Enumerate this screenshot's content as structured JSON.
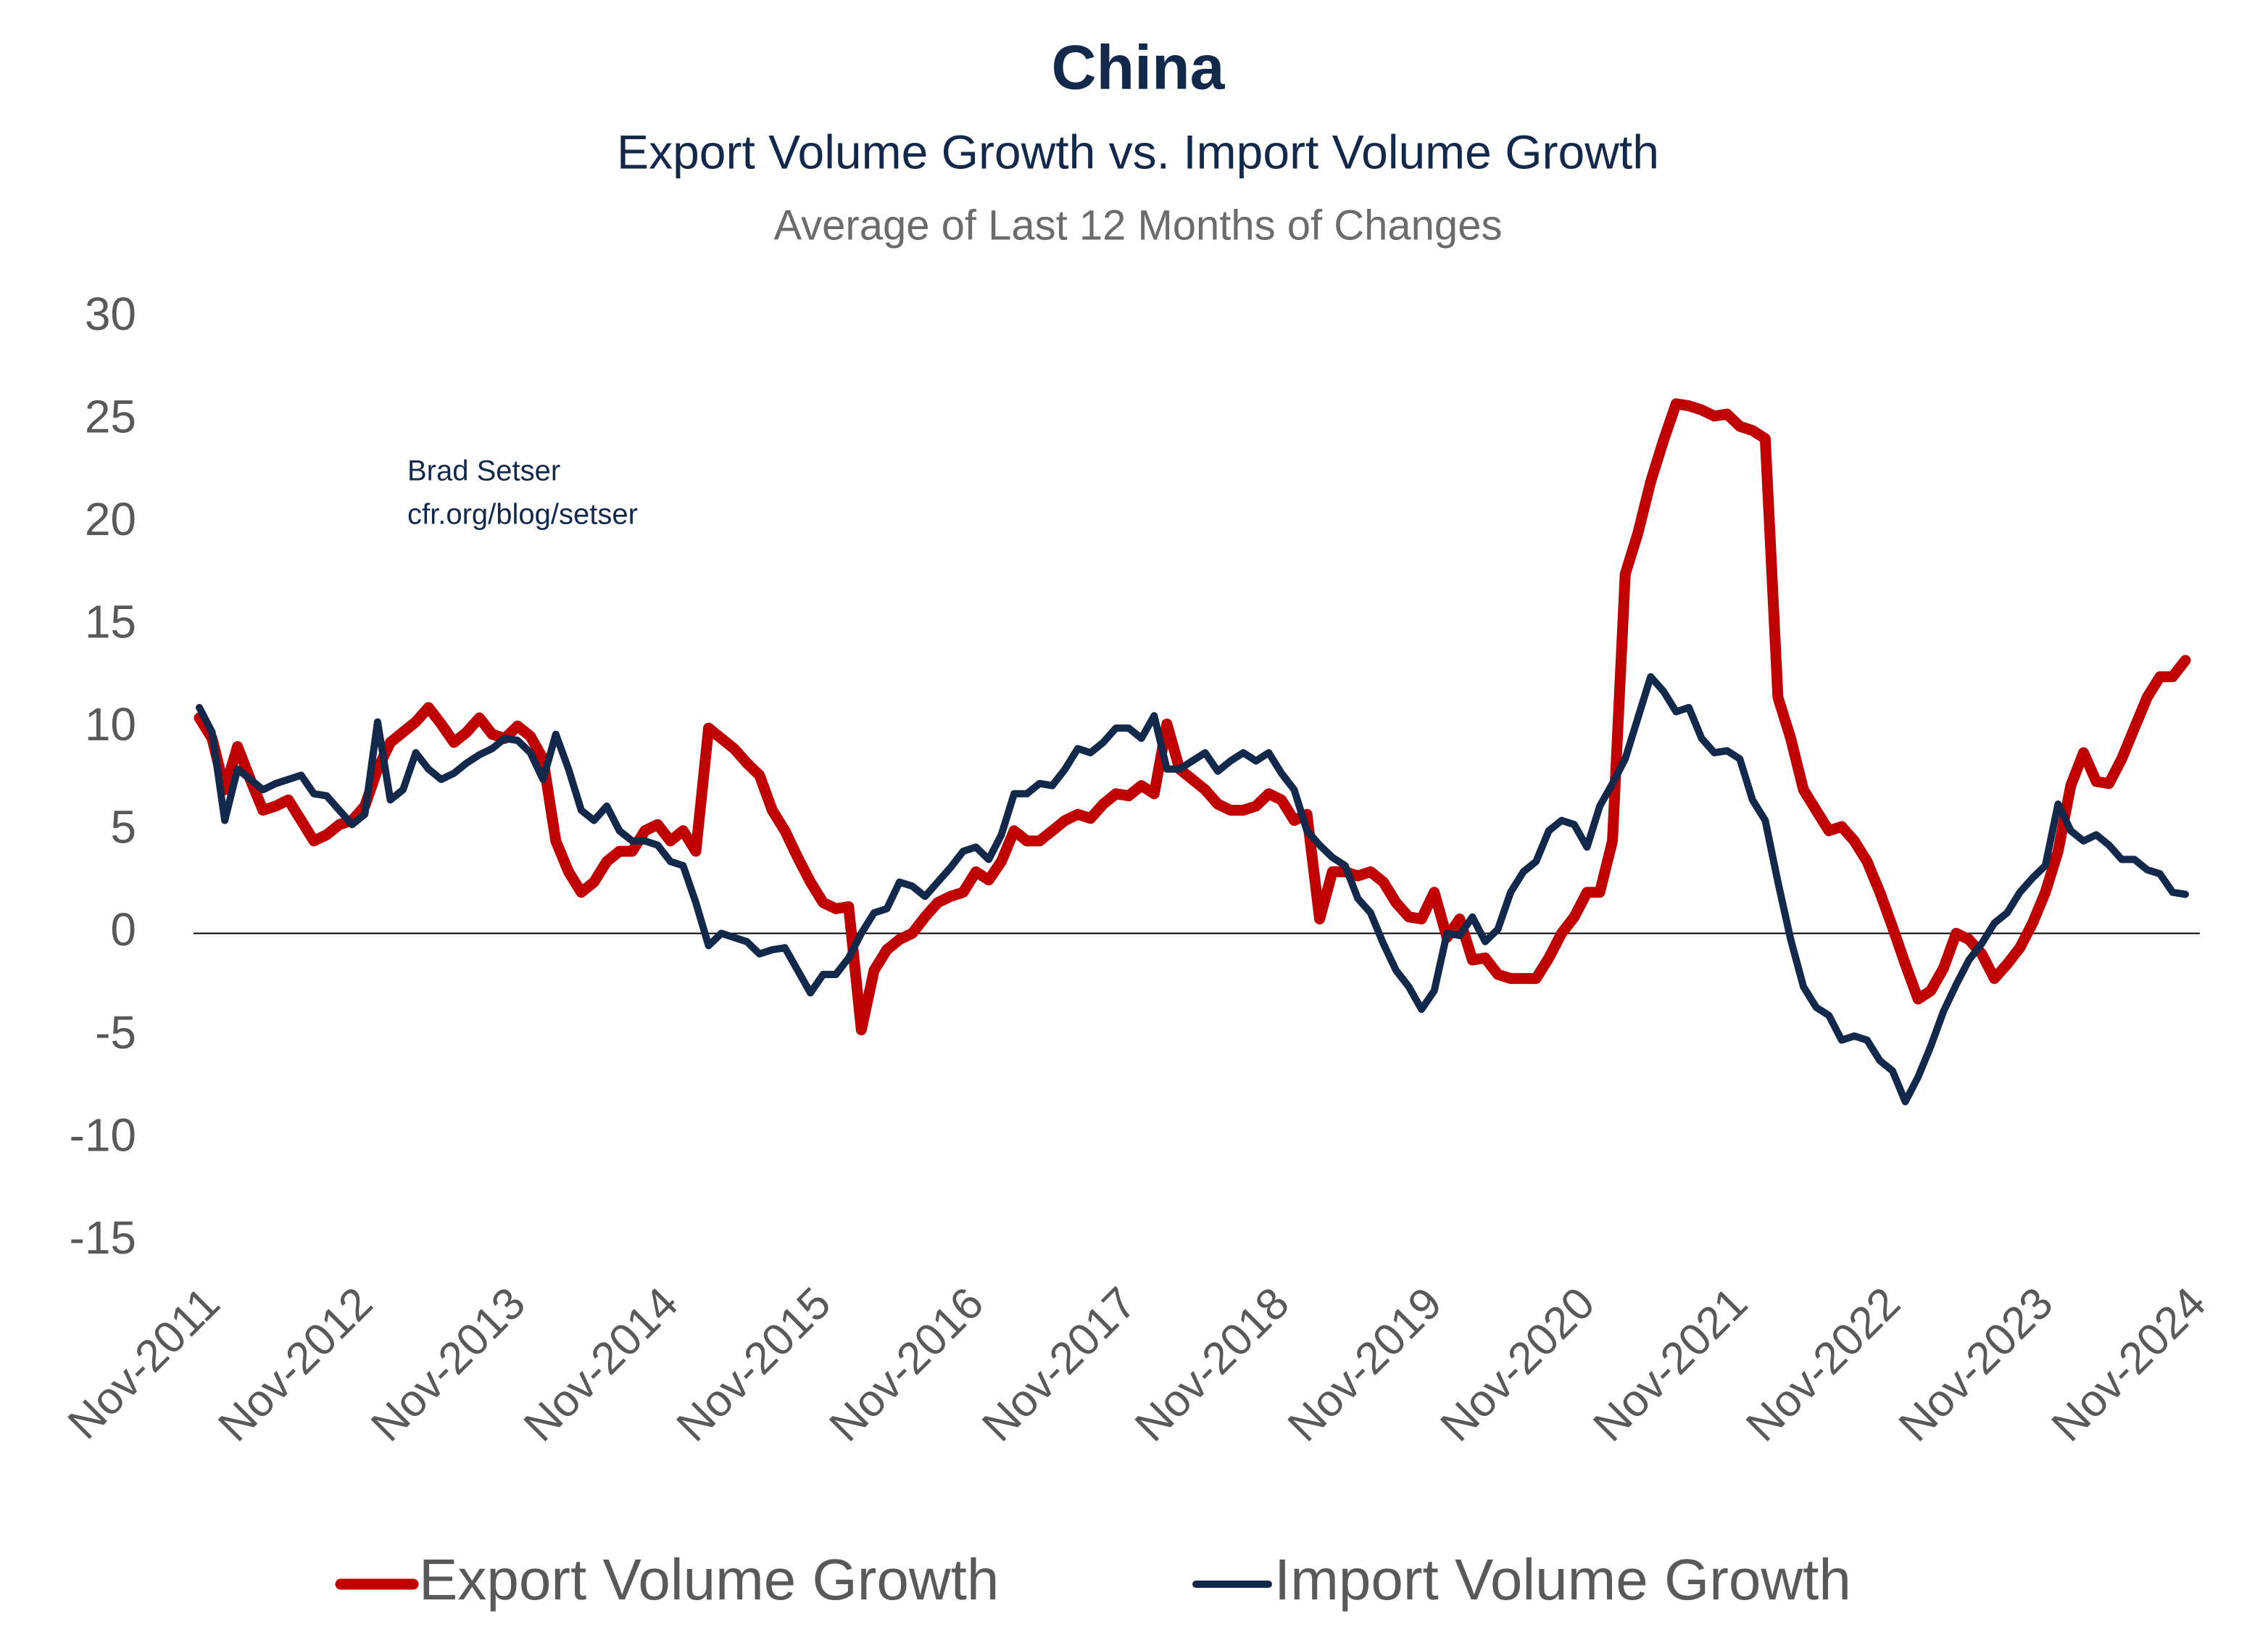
{
  "chart_data": {
    "type": "line",
    "title": "China",
    "subtitle": "Export Volume Growth vs. Import Volume Growth",
    "note": "Average of Last 12 Months of Changes",
    "annotations": [
      "Brad Setser",
      "cfr.org/blog/setser"
    ],
    "categories": [
      "Nov-2011",
      null,
      null,
      null,
      null,
      null,
      null,
      null,
      null,
      null,
      null,
      null,
      "Nov-2012",
      null,
      null,
      null,
      null,
      null,
      null,
      null,
      null,
      null,
      null,
      null,
      "Nov-2013",
      null,
      null,
      null,
      null,
      null,
      null,
      null,
      null,
      null,
      null,
      null,
      "Nov-2014",
      null,
      null,
      null,
      null,
      null,
      null,
      null,
      null,
      null,
      null,
      null,
      "Nov-2015",
      null,
      null,
      null,
      null,
      null,
      null,
      null,
      null,
      null,
      null,
      null,
      "Nov-2016",
      null,
      null,
      null,
      null,
      null,
      null,
      null,
      null,
      null,
      null,
      null,
      "Nov-2017",
      null,
      null,
      null,
      null,
      null,
      null,
      null,
      null,
      null,
      null,
      null,
      "Nov-2018",
      null,
      null,
      null,
      null,
      null,
      null,
      null,
      null,
      null,
      null,
      null,
      "Nov-2019",
      null,
      null,
      null,
      null,
      null,
      null,
      null,
      null,
      null,
      null,
      null,
      "Nov-2020",
      null,
      null,
      null,
      null,
      null,
      null,
      null,
      null,
      null,
      null,
      null,
      "Nov-2021",
      null,
      null,
      null,
      null,
      null,
      null,
      null,
      null,
      null,
      null,
      null,
      "Nov-2022",
      null,
      null,
      null,
      null,
      null,
      null,
      null,
      null,
      null,
      null,
      null,
      "Nov-2023",
      null,
      null,
      null,
      null,
      null,
      null,
      null,
      null,
      null,
      null,
      null,
      "Nov-2024"
    ],
    "series": [
      {
        "name": "Export Volume Growth",
        "color": "#c00000",
        "values": [
          10.5,
          9.5,
          7,
          9.1,
          7.5,
          6,
          6.2,
          6.5,
          5.5,
          4.5,
          4.8,
          5.3,
          5.5,
          6.2,
          8,
          9.3,
          9.8,
          10.3,
          11,
          10.2,
          9.3,
          9.8,
          10.5,
          9.7,
          9.5,
          10.1,
          9.6,
          8.5,
          4.5,
          3,
          2,
          2.5,
          3.5,
          4,
          4,
          5,
          5.3,
          4.5,
          5,
          4,
          10,
          9.5,
          9,
          8.3,
          7.7,
          6,
          5,
          3.7,
          2.5,
          1.5,
          1.2,
          1.3,
          -4.7,
          -1.8,
          -0.8,
          -0.3,
          0,
          0.8,
          1.5,
          1.8,
          2,
          3,
          2.6,
          3.5,
          5,
          4.5,
          4.5,
          5,
          5.5,
          5.8,
          5.6,
          6.3,
          6.8,
          6.7,
          7.2,
          6.8,
          10.2,
          8,
          7.5,
          7,
          6.3,
          6,
          6,
          6.2,
          6.8,
          6.5,
          5.5,
          5.8,
          0.7,
          3,
          3,
          2.8,
          3,
          2.5,
          1.5,
          0.8,
          0.7,
          2,
          -0.2,
          0.7,
          -1.3,
          -1.2,
          -2,
          -2.2,
          -2.2,
          -2.2,
          -1.2,
          0,
          0.8,
          2,
          2,
          4.5,
          17.5,
          19.5,
          22,
          24,
          25.8,
          25.7,
          25.5,
          25.2,
          25.3,
          24.7,
          24.5,
          24.1,
          11.5,
          9.5,
          7,
          6,
          5,
          5.2,
          4.5,
          3.5,
          2,
          0.3,
          -1.5,
          -3.2,
          -2.8,
          -1.7,
          0,
          -0.3,
          -1,
          -2.2,
          -1.5,
          -0.7,
          0.5,
          2,
          4,
          7.2,
          8.8,
          7.4,
          7.3,
          8.5,
          10,
          11.5,
          12.5,
          12.5,
          13.3
        ]
      },
      {
        "name": "Import Volume Growth",
        "color": "#13294b",
        "values": [
          11,
          9.8,
          5.5,
          8,
          7.5,
          7,
          7.3,
          7.5,
          7.7,
          6.8,
          6.7,
          6,
          5.3,
          5.8,
          10.3,
          6.5,
          7,
          8.8,
          8,
          7.5,
          7.8,
          8.3,
          8.7,
          9,
          9.5,
          9.4,
          8.8,
          7.5,
          9.7,
          8,
          6,
          5.5,
          6.2,
          5,
          4.5,
          4.5,
          4.3,
          3.5,
          3.3,
          1.5,
          -0.6,
          0,
          -0.2,
          -0.4,
          -1,
          -0.8,
          -0.7,
          -1.8,
          -2.9,
          -2,
          -2,
          -1.2,
          0,
          1,
          1.2,
          2.5,
          2.3,
          1.8,
          2.5,
          3.2,
          4,
          4.2,
          3.6,
          4.8,
          6.8,
          6.8,
          7.3,
          7.2,
          8,
          9,
          8.8,
          9.3,
          10,
          10,
          9.5,
          10.6,
          8,
          8,
          8.4,
          8.8,
          7.9,
          8.4,
          8.8,
          8.4,
          8.8,
          7.8,
          7,
          5,
          4.3,
          3.7,
          3.3,
          1.7,
          1,
          -0.5,
          -1.8,
          -2.6,
          -3.7,
          -2.8,
          0,
          -0.1,
          0.8,
          -0.4,
          0.2,
          2,
          3,
          3.5,
          5,
          5.5,
          5.3,
          4.2,
          6.2,
          7.3,
          8.5,
          10.5,
          12.5,
          11.8,
          10.8,
          11,
          9.5,
          8.8,
          8.9,
          8.5,
          6.5,
          5.5,
          2.5,
          -0.3,
          -2.6,
          -3.6,
          -4,
          -5.2,
          -5,
          -5.2,
          -6.2,
          -6.7,
          -8.2,
          -7,
          -5.5,
          -3.8,
          -2.5,
          -1.3,
          -0.5,
          0.5,
          1,
          2,
          2.7,
          3.3,
          6.3,
          5,
          4.5,
          4.8,
          4.3,
          3.6,
          3.6,
          3.1,
          2.9,
          2,
          1.9
        ]
      }
    ],
    "ylim": [
      -15,
      30
    ],
    "yticks": [
      30,
      25,
      20,
      15,
      10,
      5,
      0,
      -5,
      -10,
      -15
    ],
    "grid": false,
    "legend": "bottom"
  }
}
